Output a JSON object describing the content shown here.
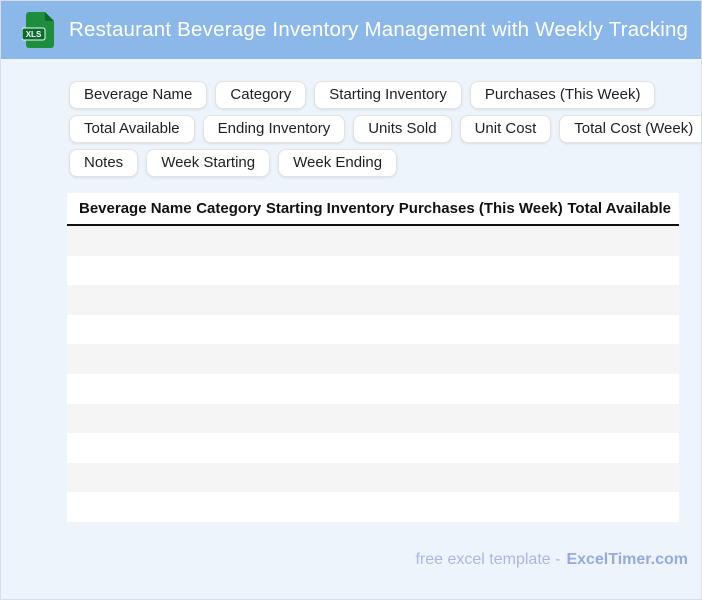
{
  "header": {
    "title": "Restaurant Beverage Inventory Management with Weekly Tracking",
    "icon": "xls-file-icon",
    "icon_badge_text": "XLS"
  },
  "chips": {
    "rows": [
      [
        "Beverage Name",
        "Category",
        "Starting Inventory",
        "Purchases (This Week)"
      ],
      [
        "Total Available",
        "Ending Inventory",
        "Units Sold",
        "Unit Cost",
        "Total Cost (Week)"
      ],
      [
        "Notes",
        "Week Starting",
        "Week Ending"
      ]
    ]
  },
  "table": {
    "columns": [
      "Beverage Name",
      "Category",
      "Starting Inventory",
      "Purchases (This Week)",
      "Total Available"
    ],
    "row_count": 10,
    "rows": []
  },
  "footer": {
    "prefix": "free excel template -",
    "brand": "ExcelTimer.com"
  },
  "colors": {
    "topbar_bg": "#8BB8E8",
    "page_bg": "#EDF4FC",
    "stripe": "#F5F5F5",
    "header_rule": "#111111",
    "icon_green": "#1E8E3E",
    "icon_green_dark": "#0B6B2F",
    "footer_text": "#A9B7E3",
    "footer_brand": "#97A9DD"
  }
}
